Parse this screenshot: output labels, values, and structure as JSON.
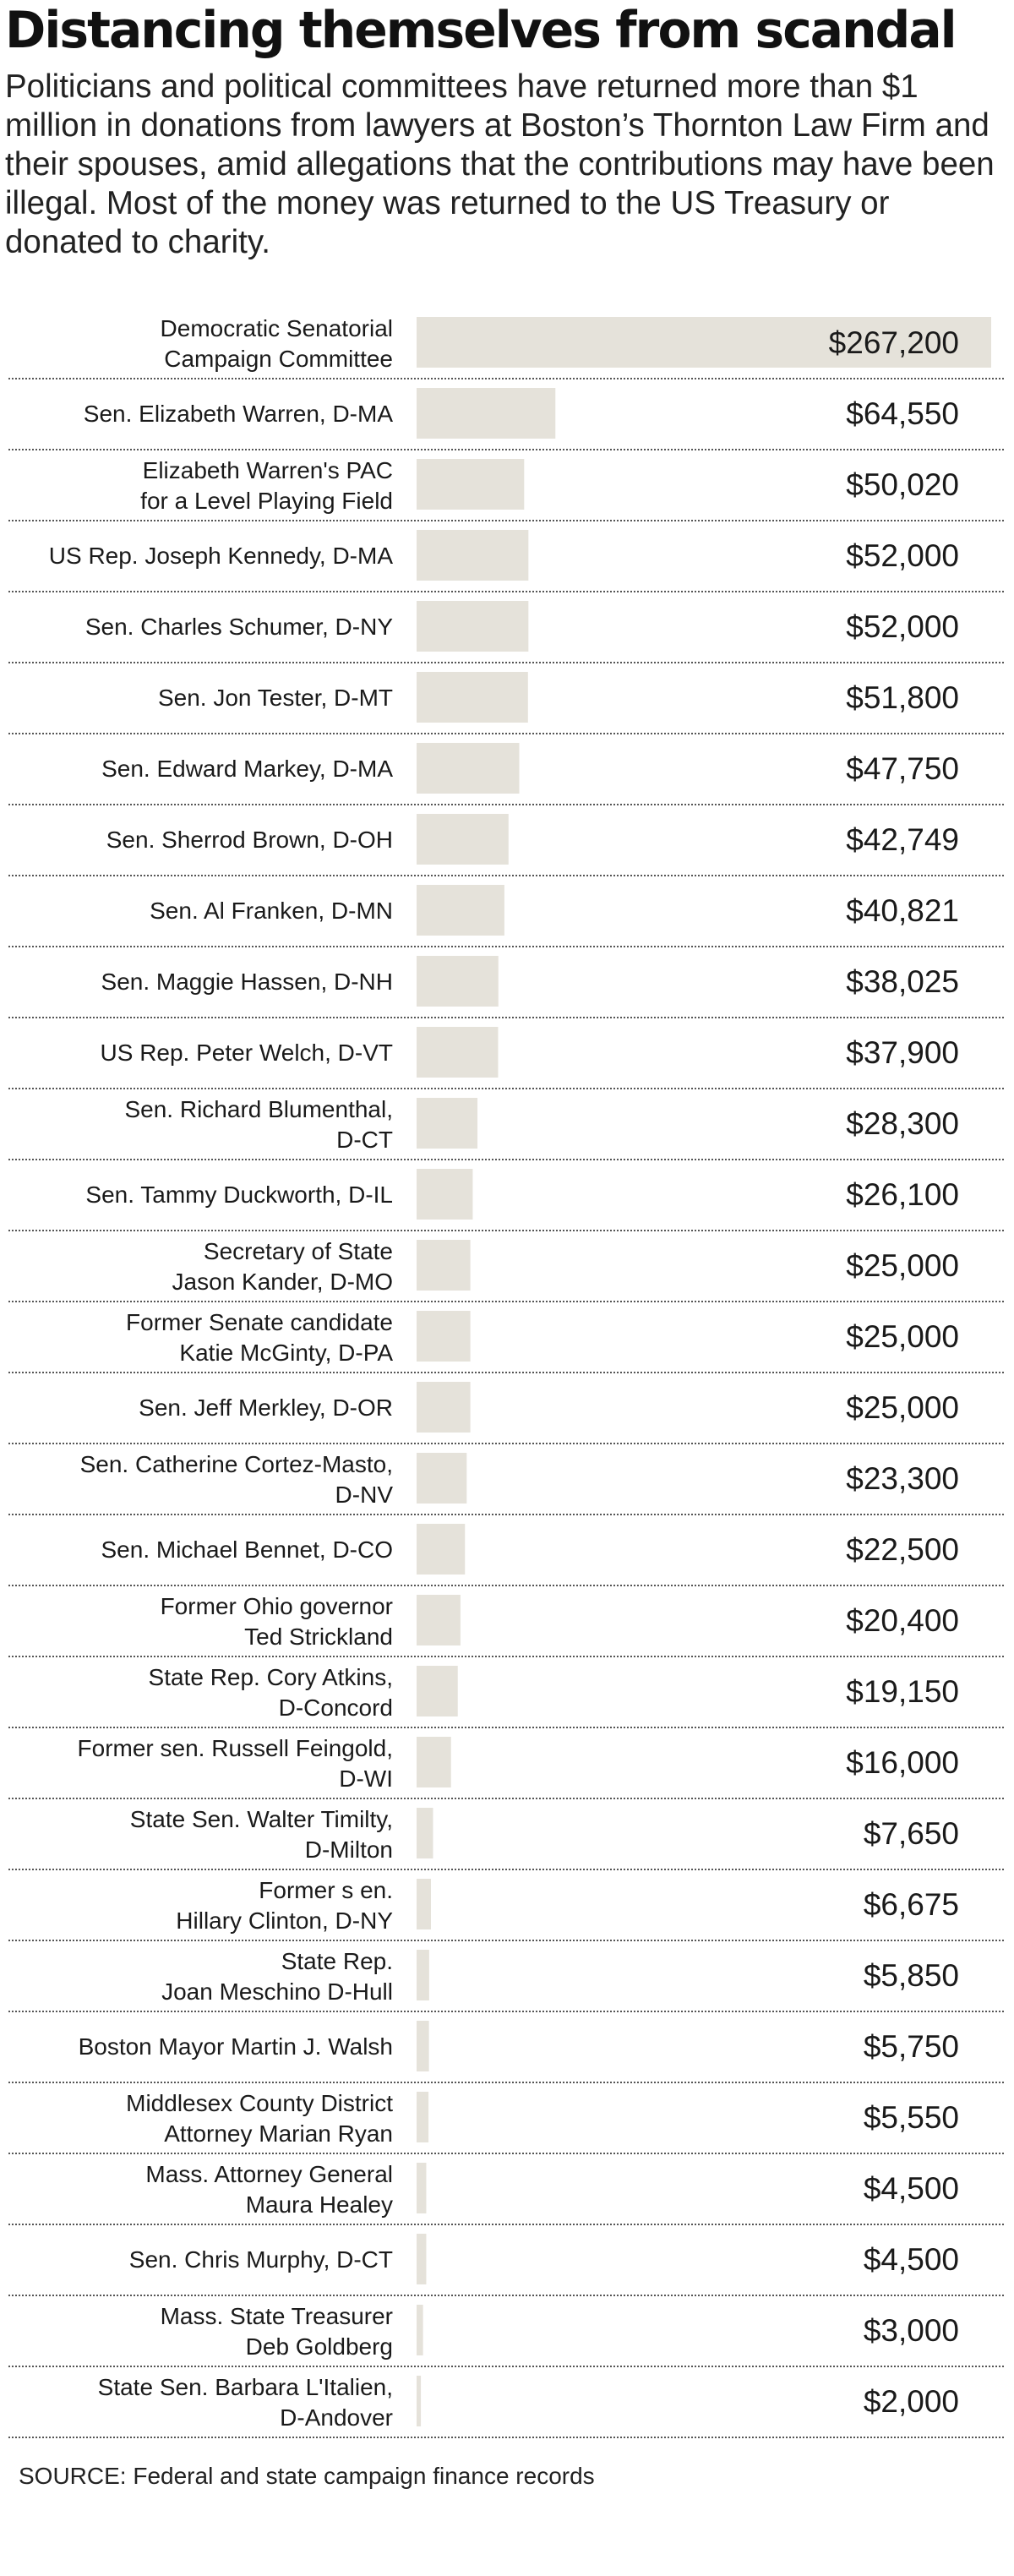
{
  "title": "Distancing themselves from scandal",
  "intro": "Politicians and political committees have returned more than $1 million in donations from lawyers at Boston’s Thornton Law Firm and their spouses, amid allegations that the contributions may have been illegal. Most of the money was returned to the US Treasury or donated to charity.",
  "source": "SOURCE: Federal and state campaign finance records",
  "colors": {
    "bar": "#e5e2da",
    "divider": "#555555",
    "text": "#1a1a1a"
  },
  "chart_data": {
    "type": "bar",
    "orientation": "horizontal",
    "categories": [
      [
        "Democratic Senatorial",
        "Campaign Committee"
      ],
      [
        "Sen. Elizabeth Warren, D-MA"
      ],
      [
        "Elizabeth Warren's PAC",
        "for a Level Playing Field"
      ],
      [
        "US Rep. Joseph Kennedy, D-MA"
      ],
      [
        "Sen. Charles Schumer, D-NY"
      ],
      [
        "Sen. Jon Tester, D-MT"
      ],
      [
        "Sen. Edward Markey, D-MA"
      ],
      [
        "Sen. Sherrod Brown, D-OH"
      ],
      [
        "Sen. Al Franken, D-MN"
      ],
      [
        "Sen. Maggie Hassen, D-NH"
      ],
      [
        "US Rep. Peter Welch, D-VT"
      ],
      [
        "Sen. Richard Blumenthal,",
        "D-CT"
      ],
      [
        "Sen. Tammy Duckworth, D-IL"
      ],
      [
        "Secretary of State",
        "Jason Kander, D-MO"
      ],
      [
        "Former Senate candidate",
        "Katie McGinty, D-PA"
      ],
      [
        "Sen. Jeff Merkley, D-OR"
      ],
      [
        "Sen. Catherine Cortez-Masto,",
        "D-NV"
      ],
      [
        "Sen. Michael Bennet, D-CO"
      ],
      [
        "Former Ohio governor",
        "Ted Strickland"
      ],
      [
        "State Rep. Cory Atkins,",
        "D-Concord"
      ],
      [
        "Former sen. Russell Feingold,",
        "D-WI"
      ],
      [
        "State Sen. Walter Timilty,",
        "D-Milton"
      ],
      [
        "Former s en.",
        "Hillary Clinton, D-NY"
      ],
      [
        "State Rep.",
        "Joan Meschino  D-Hull"
      ],
      [
        "Boston Mayor Martin J. Walsh"
      ],
      [
        "Middlesex County District",
        "Attorney Marian Ryan"
      ],
      [
        "Mass. Attorney General",
        "Maura Healey"
      ],
      [
        "Sen. Chris Murphy, D-CT"
      ],
      [
        "Mass. State Treasurer",
        "Deb Goldberg"
      ],
      [
        "State Sen. Barbara L'Italien,",
        "D-Andover"
      ]
    ],
    "values": [
      267200,
      64550,
      50020,
      52000,
      52000,
      51800,
      47750,
      42749,
      40821,
      38025,
      37900,
      28300,
      26100,
      25000,
      25000,
      25000,
      23300,
      22500,
      20400,
      19150,
      16000,
      7650,
      6675,
      5850,
      5750,
      5550,
      4500,
      4500,
      3000,
      2000
    ],
    "value_labels": [
      "$267,200",
      "$64,550",
      "$50,020",
      "$52,000",
      "$52,000",
      "$51,800",
      "$47,750",
      "$42,749",
      "$40,821",
      "$38,025",
      "$37,900",
      "$28,300",
      "$26,100",
      "$25,000",
      "$25,000",
      "$25,000",
      "$23,300",
      "$22,500",
      "$20,400",
      "$19,150",
      "$16,000",
      "$7,650",
      "$6,675",
      "$5,850",
      "$5,750",
      "$5,550",
      "$4,500",
      "$4,500",
      "$3,000",
      "$2,000"
    ],
    "xlim": [
      0,
      267200
    ],
    "grid": false,
    "legend": "none"
  }
}
